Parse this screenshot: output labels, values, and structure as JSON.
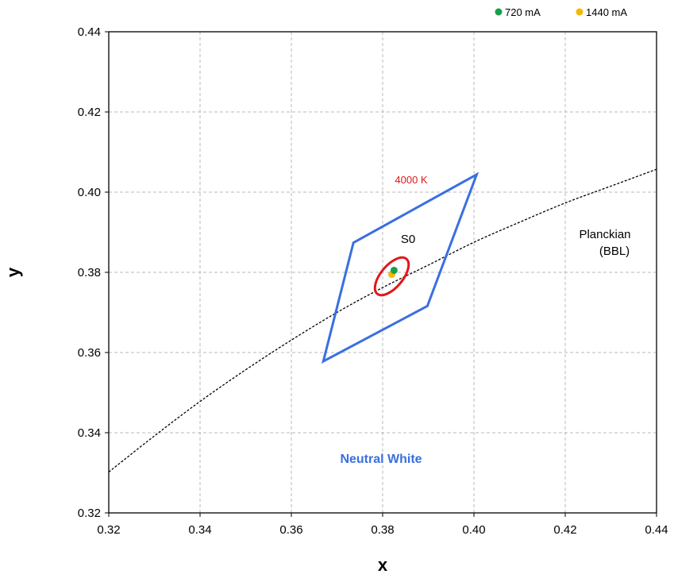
{
  "chart_data": {
    "type": "scatter",
    "xlabel": "x",
    "ylabel": "y",
    "xlim": [
      0.32,
      0.44
    ],
    "ylim": [
      0.32,
      0.44
    ],
    "xticks": [
      "0.32",
      "0.34",
      "0.36",
      "0.38",
      "0.40",
      "0.42",
      "0.44"
    ],
    "yticks": [
      "0.32",
      "0.34",
      "0.36",
      "0.38",
      "0.40",
      "0.42",
      "0.44"
    ],
    "grid": true,
    "legend_position": "top-right",
    "series": [
      {
        "name": "720 mA",
        "color": "#1a9e4b",
        "points": [
          [
            0.3825,
            0.3805
          ]
        ]
      },
      {
        "name": "1440 mA",
        "color": "#f5b800",
        "points": [
          [
            0.382,
            0.3795
          ]
        ]
      }
    ],
    "neutral_white_region": {
      "label": "Neutral White",
      "color": "#3a6fe0",
      "vertices": [
        [
          0.3736,
          0.3874
        ],
        [
          0.4006,
          0.4044
        ],
        [
          0.3898,
          0.3716
        ],
        [
          0.367,
          0.3578
        ]
      ]
    },
    "s0_ellipse": {
      "label": "S0",
      "cct_label": "4000 K",
      "color": "#e0181a",
      "center": [
        0.382,
        0.379
      ],
      "semi_axis_a": 0.0054,
      "semi_axis_b": 0.0025,
      "angle_deg": 53.7
    },
    "planckian_locus": {
      "label_line1": "Planckian",
      "label_line2": "(BBL)",
      "points": [
        [
          0.32,
          0.3302
        ],
        [
          0.33,
          0.3392
        ],
        [
          0.34,
          0.3478
        ],
        [
          0.35,
          0.3557
        ],
        [
          0.36,
          0.3631
        ],
        [
          0.37,
          0.37
        ],
        [
          0.38,
          0.3762
        ],
        [
          0.39,
          0.3818
        ],
        [
          0.4,
          0.3875
        ],
        [
          0.41,
          0.3925
        ],
        [
          0.42,
          0.3973
        ],
        [
          0.43,
          0.4015
        ],
        [
          0.44,
          0.4057
        ]
      ]
    }
  }
}
